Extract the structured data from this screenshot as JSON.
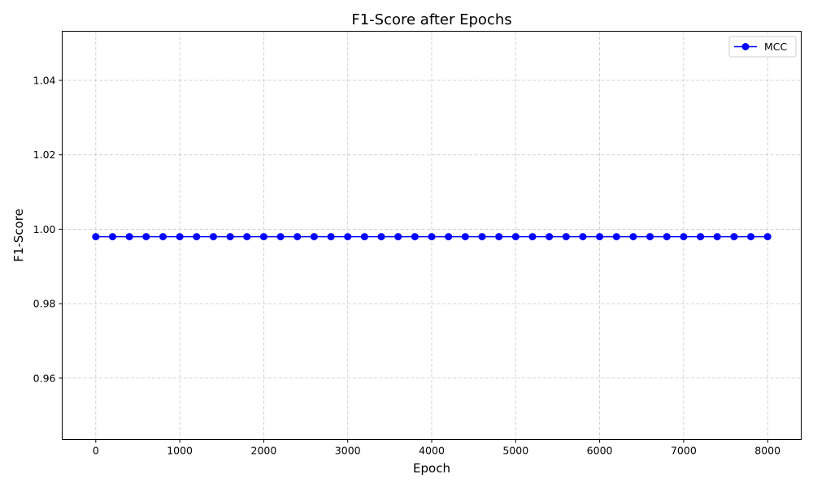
{
  "chart_data": {
    "type": "line",
    "title": "F1-Score after Epochs",
    "xlabel": "Epoch",
    "ylabel": "F1-Score",
    "xlim": [
      -400,
      8400
    ],
    "ylim": [
      0.9435,
      1.0532
    ],
    "xticks": [
      0,
      1000,
      2000,
      3000,
      4000,
      5000,
      6000,
      7000,
      8000
    ],
    "yticks": [
      0.96,
      0.98,
      1.0,
      1.02,
      1.04
    ],
    "grid": true,
    "legend_position": "top-right",
    "series": [
      {
        "name": "MCC",
        "color": "#0000ff",
        "marker": "circle",
        "x": [
          0,
          200,
          400,
          600,
          800,
          1000,
          1200,
          1400,
          1600,
          1800,
          2000,
          2200,
          2400,
          2600,
          2800,
          3000,
          3200,
          3400,
          3600,
          3800,
          4000,
          4200,
          4400,
          4600,
          4800,
          5000,
          5200,
          5400,
          5600,
          5800,
          6000,
          6200,
          6400,
          6600,
          6800,
          7000,
          7200,
          7400,
          7600,
          7800,
          8000
        ],
        "values": [
          0.998,
          0.998,
          0.998,
          0.998,
          0.998,
          0.998,
          0.998,
          0.998,
          0.998,
          0.998,
          0.998,
          0.998,
          0.998,
          0.998,
          0.998,
          0.998,
          0.998,
          0.998,
          0.998,
          0.998,
          0.998,
          0.998,
          0.998,
          0.998,
          0.998,
          0.998,
          0.998,
          0.998,
          0.998,
          0.998,
          0.998,
          0.998,
          0.998,
          0.998,
          0.998,
          0.998,
          0.998,
          0.998,
          0.998,
          0.998,
          0.998
        ]
      }
    ]
  }
}
